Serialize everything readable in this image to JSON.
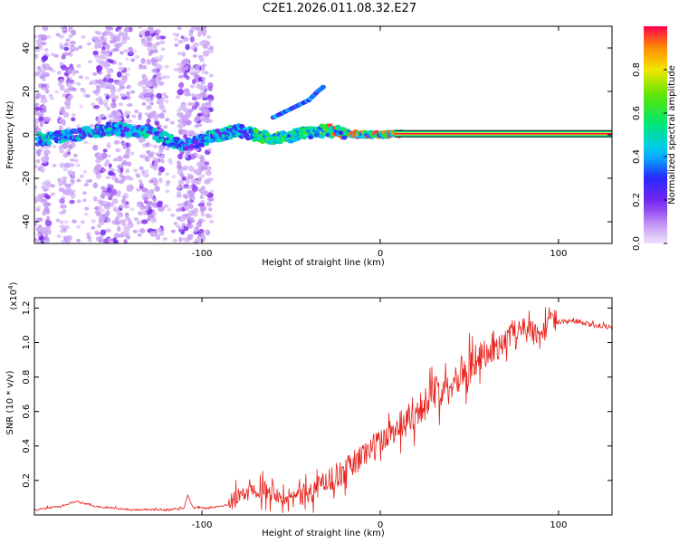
{
  "title": "C2E1.2026.011.08.32.E27",
  "chart_data": [
    {
      "type": "heatmap",
      "name": "spectrogram",
      "xlabel": "Height of straight line (km)",
      "ylabel": "Frequency (Hz)",
      "xlim": [
        -194,
        130
      ],
      "ylim": [
        -50,
        50
      ],
      "xticks": [
        -100,
        0,
        100
      ],
      "yticks": [
        -40,
        -20,
        0,
        20,
        40
      ],
      "colorbar": {
        "label": "Normalized spectral amplitude",
        "range": [
          0,
          1
        ],
        "ticks": [
          0.0,
          0.2,
          0.4,
          0.6,
          0.8
        ]
      },
      "ridge": {
        "comment": "dominant frequency ridge (Hz) vs height (km)",
        "x": [
          -190,
          -170,
          -150,
          -130,
          -110,
          -95,
          -80,
          -60,
          -40,
          -30,
          -20,
          -10,
          0,
          10,
          20,
          130
        ],
        "y": [
          -2,
          0,
          3,
          1,
          -5,
          -1,
          2,
          -2,
          1,
          2,
          1,
          0,
          0,
          0.5,
          0.5,
          0.5
        ]
      },
      "branch": {
        "comment": "weaker upper branch (Hz) vs height (km)",
        "x": [
          -60,
          -50,
          -40,
          -35,
          -32
        ],
        "y": [
          8,
          12,
          16,
          20,
          22
        ]
      }
    },
    {
      "type": "line",
      "name": "snr",
      "xlabel": "Height of straight line (km)",
      "ylabel": "SNR (10 * v/v)",
      "multiplier_label": "(x10",
      "multiplier_exp": "4",
      "xlim": [
        -194,
        130
      ],
      "ylim": [
        0,
        1.26
      ],
      "xticks": [
        -100,
        0,
        100
      ],
      "yticks": [
        0.2,
        0.4,
        0.6,
        0.8,
        1.0,
        1.2
      ],
      "line_color": "#e8211b",
      "series": [
        {
          "name": "SNR",
          "x": [
            -194,
            -180,
            -170,
            -160,
            -140,
            -120,
            -110,
            -108,
            -105,
            -95,
            -85,
            -80,
            -70,
            -60,
            -50,
            -40,
            -30,
            -20,
            -10,
            0,
            10,
            20,
            30,
            40,
            50,
            60,
            70,
            75,
            80,
            90,
            95,
            100,
            110,
            120,
            130
          ],
          "y": [
            0.03,
            0.05,
            0.08,
            0.05,
            0.03,
            0.03,
            0.04,
            0.12,
            0.04,
            0.04,
            0.06,
            0.1,
            0.16,
            0.14,
            0.1,
            0.12,
            0.2,
            0.25,
            0.35,
            0.42,
            0.52,
            0.6,
            0.7,
            0.78,
            0.86,
            0.93,
            1.0,
            1.08,
            1.1,
            1.02,
            1.15,
            1.12,
            1.12,
            1.1,
            1.09
          ]
        }
      ]
    }
  ]
}
